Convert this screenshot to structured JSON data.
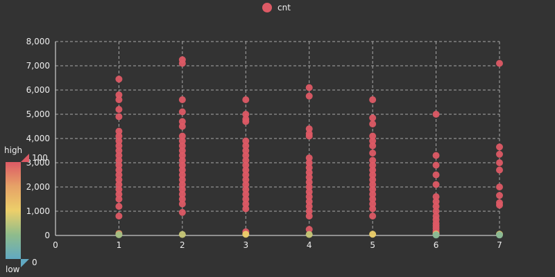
{
  "legend": {
    "label": "cnt",
    "color": "#dd5a65"
  },
  "visual_map": {
    "high_label": "high",
    "low_label": "low",
    "max_label": "100",
    "min_label": "0",
    "colors": [
      "#dd5a65",
      "#e6a267",
      "#eccf6a",
      "#8fbc8b",
      "#61a9c2"
    ]
  },
  "chart_data": {
    "type": "scatter",
    "xlim": [
      0,
      7
    ],
    "ylim": [
      0,
      8000
    ],
    "xticks": [
      0,
      1,
      2,
      3,
      4,
      5,
      6,
      7
    ],
    "yticks": [
      0,
      1000,
      2000,
      3000,
      4000,
      5000,
      6000,
      7000,
      8000
    ],
    "x_tick_labels": [
      "0",
      "1",
      "2",
      "3",
      "4",
      "5",
      "6",
      "7"
    ],
    "y_tick_labels": [
      "0",
      "1,000",
      "2,000",
      "3,000",
      "4,000",
      "5,000",
      "6,000",
      "7,000",
      "8,000"
    ],
    "grid": true,
    "series": [
      {
        "name": "cnt",
        "points": [
          [
            1,
            6450
          ],
          [
            1,
            5800
          ],
          [
            1,
            5600
          ],
          [
            1,
            5200
          ],
          [
            1,
            4900
          ],
          [
            1,
            4300
          ],
          [
            1,
            4100
          ],
          [
            1,
            3900
          ],
          [
            1,
            3700
          ],
          [
            1,
            3500
          ],
          [
            1,
            3300
          ],
          [
            1,
            3100
          ],
          [
            1,
            2900
          ],
          [
            1,
            2700
          ],
          [
            1,
            2500
          ],
          [
            1,
            2300
          ],
          [
            1,
            2100
          ],
          [
            1,
            1900
          ],
          [
            1,
            1700
          ],
          [
            1,
            1500
          ],
          [
            1,
            1200
          ],
          [
            1,
            800
          ],
          [
            1,
            80
          ],
          [
            1,
            30
          ],
          [
            2,
            7250
          ],
          [
            2,
            7100
          ],
          [
            2,
            5600
          ],
          [
            2,
            5100
          ],
          [
            2,
            4700
          ],
          [
            2,
            4500
          ],
          [
            2,
            4100
          ],
          [
            2,
            3900
          ],
          [
            2,
            3700
          ],
          [
            2,
            3500
          ],
          [
            2,
            3300
          ],
          [
            2,
            3100
          ],
          [
            2,
            2900
          ],
          [
            2,
            2700
          ],
          [
            2,
            2500
          ],
          [
            2,
            2300
          ],
          [
            2,
            2100
          ],
          [
            2,
            1900
          ],
          [
            2,
            1700
          ],
          [
            2,
            1500
          ],
          [
            2,
            1300
          ],
          [
            2,
            950
          ],
          [
            2,
            40
          ],
          [
            3,
            5600
          ],
          [
            3,
            5000
          ],
          [
            3,
            4800
          ],
          [
            3,
            4700
          ],
          [
            3,
            3900
          ],
          [
            3,
            3700
          ],
          [
            3,
            3500
          ],
          [
            3,
            3300
          ],
          [
            3,
            3100
          ],
          [
            3,
            2900
          ],
          [
            3,
            2700
          ],
          [
            3,
            2500
          ],
          [
            3,
            2300
          ],
          [
            3,
            2100
          ],
          [
            3,
            1900
          ],
          [
            3,
            1700
          ],
          [
            3,
            1500
          ],
          [
            3,
            1300
          ],
          [
            3,
            1100
          ],
          [
            3,
            150
          ],
          [
            3,
            50
          ],
          [
            4,
            6100
          ],
          [
            4,
            5750
          ],
          [
            4,
            4400
          ],
          [
            4,
            4200
          ],
          [
            4,
            4100
          ],
          [
            4,
            3200
          ],
          [
            4,
            3000
          ],
          [
            4,
            2800
          ],
          [
            4,
            2600
          ],
          [
            4,
            2400
          ],
          [
            4,
            2200
          ],
          [
            4,
            2000
          ],
          [
            4,
            1800
          ],
          [
            4,
            1600
          ],
          [
            4,
            1400
          ],
          [
            4,
            1200
          ],
          [
            4,
            1000
          ],
          [
            4,
            800
          ],
          [
            4,
            250
          ],
          [
            4,
            40
          ],
          [
            5,
            5600
          ],
          [
            5,
            4850
          ],
          [
            5,
            4600
          ],
          [
            5,
            4100
          ],
          [
            5,
            3900
          ],
          [
            5,
            3700
          ],
          [
            5,
            3400
          ],
          [
            5,
            3100
          ],
          [
            5,
            2900
          ],
          [
            5,
            2700
          ],
          [
            5,
            2500
          ],
          [
            5,
            2300
          ],
          [
            5,
            2100
          ],
          [
            5,
            1900
          ],
          [
            5,
            1700
          ],
          [
            5,
            1500
          ],
          [
            5,
            1300
          ],
          [
            5,
            1100
          ],
          [
            5,
            800
          ],
          [
            5,
            50
          ],
          [
            6,
            5000
          ],
          [
            6,
            3300
          ],
          [
            6,
            2900
          ],
          [
            6,
            2500
          ],
          [
            6,
            2100
          ],
          [
            6,
            1600
          ],
          [
            6,
            1400
          ],
          [
            6,
            1200
          ],
          [
            6,
            1000
          ],
          [
            6,
            800
          ],
          [
            6,
            650
          ],
          [
            6,
            500
          ],
          [
            6,
            400
          ],
          [
            6,
            300
          ],
          [
            6,
            200
          ],
          [
            6,
            120
          ],
          [
            6,
            60
          ],
          [
            6,
            20
          ],
          [
            7,
            7100
          ],
          [
            7,
            3650
          ],
          [
            7,
            3350
          ],
          [
            7,
            3000
          ],
          [
            7,
            2700
          ],
          [
            7,
            2000
          ],
          [
            7,
            1650
          ],
          [
            7,
            1350
          ],
          [
            7,
            1250
          ],
          [
            7,
            50
          ],
          [
            7,
            20
          ]
        ]
      }
    ]
  }
}
